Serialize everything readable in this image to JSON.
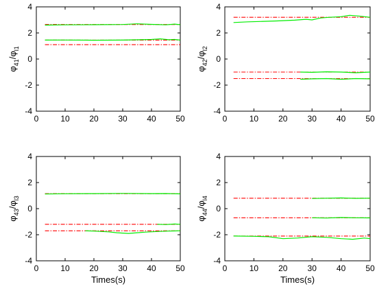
{
  "chart_data": [
    {
      "type": "line",
      "ylabel": {
        "main": "φ",
        "sub1": "41",
        "sep": "/φ",
        "sub2": "l1"
      },
      "xlabel": "",
      "xlim": [
        0,
        50
      ],
      "ylim": [
        -4,
        4
      ],
      "xticks": [
        0,
        10,
        20,
        30,
        40,
        50
      ],
      "xticklabels": [
        "0",
        "10",
        "20",
        "30",
        "40",
        "50"
      ],
      "yticks": [
        -4,
        -2,
        0,
        2,
        4
      ],
      "yticklabels": [
        "-4",
        "-2",
        "0",
        "2",
        "4"
      ],
      "reference_lines": [
        2.65,
        1.45,
        1.1
      ],
      "series": [
        {
          "color": "#00ee00",
          "x": [
            3,
            10,
            20,
            30,
            35,
            40,
            45,
            48,
            50
          ],
          "y": [
            2.6,
            2.62,
            2.63,
            2.65,
            2.7,
            2.66,
            2.62,
            2.68,
            2.63
          ]
        },
        {
          "color": "#00ee00",
          "x": [
            3,
            10,
            20,
            30,
            40,
            43,
            46,
            48,
            50
          ],
          "y": [
            1.45,
            1.46,
            1.44,
            1.45,
            1.5,
            1.55,
            1.48,
            1.5,
            1.45
          ]
        }
      ]
    },
    {
      "type": "line",
      "ylabel": {
        "main": "φ",
        "sub1": "42",
        "sep": "/φ",
        "sub2": "l2"
      },
      "xlabel": "",
      "xlim": [
        0,
        50
      ],
      "ylim": [
        -4,
        4
      ],
      "xticks": [
        0,
        10,
        20,
        30,
        40,
        50
      ],
      "xticklabels": [
        "0",
        "10",
        "20",
        "30",
        "40",
        "50"
      ],
      "yticks": [
        -4,
        -2,
        0,
        2,
        4
      ],
      "yticklabels": [
        "-4",
        "-2",
        "0",
        "2",
        "4"
      ],
      "reference_lines": [
        3.2,
        -1.0,
        -1.5
      ],
      "series": [
        {
          "color": "#00ee00",
          "x": [
            3,
            8,
            12,
            18,
            24,
            28,
            30,
            33,
            36,
            40,
            43,
            46,
            50
          ],
          "y": [
            2.8,
            2.85,
            2.88,
            2.92,
            2.98,
            3.05,
            3.0,
            3.15,
            3.2,
            3.25,
            3.35,
            3.3,
            3.2
          ]
        },
        {
          "color": "#00ee00",
          "x": [
            26,
            30,
            35,
            40,
            45,
            50
          ],
          "y": [
            -1.0,
            -1.02,
            -0.98,
            -1.0,
            -1.05,
            -1.0
          ]
        },
        {
          "color": "#00ee00",
          "x": [
            26,
            30,
            35,
            40,
            45,
            50
          ],
          "y": [
            -1.55,
            -1.52,
            -1.5,
            -1.55,
            -1.5,
            -1.52
          ]
        }
      ]
    },
    {
      "type": "line",
      "ylabel": {
        "main": "φ",
        "sub1": "43",
        "sep": "/φ",
        "sub2": "l3"
      },
      "xlabel": "Times(s)",
      "xlim": [
        0,
        50
      ],
      "ylim": [
        -4,
        4
      ],
      "xticks": [
        0,
        10,
        20,
        30,
        40,
        50
      ],
      "xticklabels": [
        "0",
        "10",
        "20",
        "30",
        "40",
        "50"
      ],
      "yticks": [
        -4,
        -2,
        0,
        2,
        4
      ],
      "yticklabels": [
        "-4",
        "-2",
        "0",
        "2",
        "4"
      ],
      "reference_lines": [
        1.15,
        -1.2,
        -1.7
      ],
      "series": [
        {
          "color": "#00ee00",
          "x": [
            3,
            10,
            20,
            30,
            40,
            45,
            50
          ],
          "y": [
            1.12,
            1.14,
            1.15,
            1.17,
            1.15,
            1.16,
            1.13
          ]
        },
        {
          "color": "#00ee00",
          "x": [
            42,
            45,
            48,
            50
          ],
          "y": [
            -1.2,
            -1.22,
            -1.18,
            -1.2
          ]
        },
        {
          "color": "#00ee00",
          "x": [
            17,
            20,
            25,
            28,
            32,
            35,
            38,
            42,
            46,
            50
          ],
          "y": [
            -1.7,
            -1.72,
            -1.78,
            -1.85,
            -1.9,
            -1.85,
            -1.8,
            -1.75,
            -1.72,
            -1.7
          ]
        }
      ]
    },
    {
      "type": "line",
      "ylabel": {
        "main": "φ",
        "sub1": "44",
        "sep": "/φ",
        "sub2": "l4"
      },
      "xlabel": "Times(s)",
      "xlim": [
        0,
        50
      ],
      "ylim": [
        -4,
        4
      ],
      "xticks": [
        0,
        10,
        20,
        30,
        40,
        50
      ],
      "xticklabels": [
        "0",
        "10",
        "20",
        "30",
        "40",
        "50"
      ],
      "yticks": [
        -4,
        -2,
        0,
        2,
        4
      ],
      "yticklabels": [
        "-4",
        "-2",
        "0",
        "2",
        "4"
      ],
      "reference_lines": [
        0.8,
        -0.7,
        -2.1
      ],
      "series": [
        {
          "color": "#00ee00",
          "x": [
            30,
            35,
            40,
            45,
            50
          ],
          "y": [
            0.78,
            0.8,
            0.82,
            0.79,
            0.8
          ]
        },
        {
          "color": "#00ee00",
          "x": [
            30,
            35,
            40,
            45,
            50
          ],
          "y": [
            -0.7,
            -0.72,
            -0.68,
            -0.7,
            -0.71
          ]
        },
        {
          "color": "#00ee00",
          "x": [
            3,
            10,
            15,
            20,
            25,
            30,
            35,
            40,
            44,
            48,
            50
          ],
          "y": [
            -2.1,
            -2.12,
            -2.15,
            -2.3,
            -2.25,
            -2.15,
            -2.2,
            -2.3,
            -2.35,
            -2.25,
            -2.3
          ]
        }
      ]
    }
  ],
  "colors": {
    "reference": "#ff0000",
    "estimate": "#00ee00",
    "axis": "#000000"
  }
}
